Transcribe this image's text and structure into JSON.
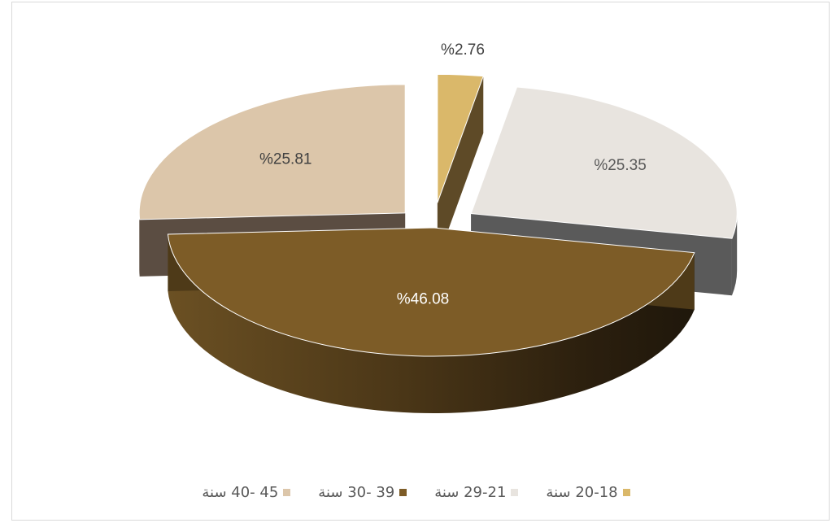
{
  "chart_data": {
    "type": "pie",
    "variant": "3d-exploded",
    "title": "",
    "legend_position": "bottom",
    "slices": [
      {
        "label": "20-18 سنة",
        "value": 2.76,
        "display": "%2.76",
        "color": "#dab86a",
        "side_color": "#5e4a27",
        "label_color": "#404040"
      },
      {
        "label": "29-21 سنة",
        "value": 25.35,
        "display": "%25.35",
        "color": "#e8e4df",
        "side_color": "#5a5a5a",
        "label_color": "#595959"
      },
      {
        "label": "39 -30 سنة",
        "value": 46.08,
        "display": "%46.08",
        "color": "#7d5c27",
        "side_color": "#4e3a18",
        "label_color": "#ffffff"
      },
      {
        "label": "45 -40 سنة",
        "value": 25.81,
        "display": "%25.81",
        "color": "#dcc6aa",
        "side_color": "#5b4d42",
        "label_color": "#404040"
      }
    ]
  }
}
